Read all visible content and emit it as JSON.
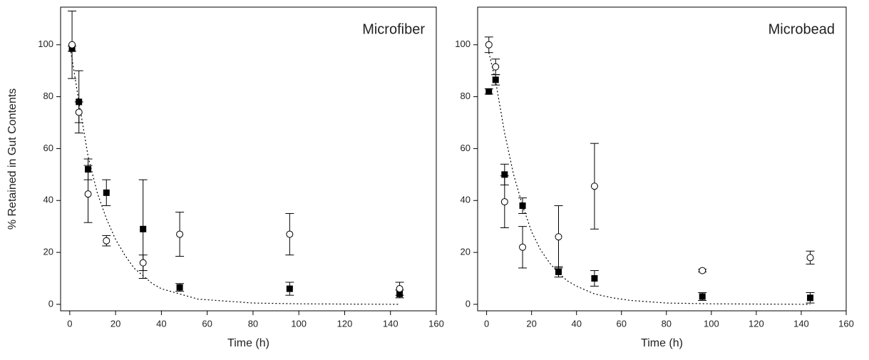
{
  "chart_data": [
    {
      "type": "scatter",
      "annotation": "Microfiber",
      "xlabel": "Time (h)",
      "ylabel": "% Retained in Gut Contents",
      "xlim": [
        -4,
        160
      ],
      "ylim": [
        -2.5,
        114.5
      ],
      "xticks": [
        0,
        20,
        40,
        60,
        80,
        100,
        120,
        140,
        160
      ],
      "yticks": [
        0,
        20,
        40,
        60,
        80,
        100
      ],
      "x": [
        1,
        4,
        8,
        16,
        32,
        48,
        96,
        144
      ],
      "series": [
        {
          "marker": "square",
          "color": "#000000",
          "values": [
            98.5,
            78,
            52,
            43,
            29,
            6.5,
            6,
            4
          ],
          "errors": [
            1,
            12,
            4,
            5,
            19,
            1.5,
            2.5,
            1.5
          ]
        },
        {
          "marker": "circle",
          "color": "#000000",
          "values": [
            100,
            74,
            42.5,
            24.5,
            16,
            27,
            27,
            6
          ],
          "errors": [
            13,
            4,
            11,
            2,
            3,
            8.5,
            8,
            2.5
          ]
        }
      ],
      "fit": {
        "x": [
          0,
          4,
          8,
          12,
          16,
          20,
          24,
          28,
          32,
          36,
          40,
          48,
          56,
          64,
          80,
          100,
          120,
          144
        ],
        "values": [
          100,
          78,
          57,
          43,
          33,
          25,
          19,
          14,
          11,
          8,
          6,
          4,
          2,
          1.5,
          0.5,
          0.2,
          0.1,
          0
        ]
      }
    },
    {
      "type": "scatter",
      "annotation": "Microbead",
      "xlabel": "Time (h)",
      "xlim": [
        -4,
        160
      ],
      "ylim": [
        -2.5,
        114.5
      ],
      "xticks": [
        0,
        20,
        40,
        60,
        80,
        100,
        120,
        140,
        160
      ],
      "yticks": [
        0,
        20,
        40,
        60,
        80,
        100
      ],
      "x": [
        1,
        4,
        8,
        16,
        32,
        48,
        96,
        144
      ],
      "series": [
        {
          "marker": "square",
          "color": "#000000",
          "values": [
            82,
            86.5,
            50,
            38,
            12.5,
            10,
            3,
            2.5
          ],
          "errors": [
            1,
            2,
            4,
            3,
            2,
            3,
            1.5,
            2
          ]
        },
        {
          "marker": "circle",
          "color": "#000000",
          "values": [
            100,
            91.5,
            39.5,
            22,
            26,
            45.5,
            13,
            18
          ],
          "errors": [
            3,
            3,
            10,
            8,
            12,
            16.5,
            0.5,
            2.5
          ]
        }
      ],
      "fit": {
        "x": [
          1,
          4,
          8,
          12,
          16,
          20,
          24,
          28,
          32,
          36,
          40,
          48,
          56,
          64,
          80,
          100,
          120,
          144
        ],
        "values": [
          97,
          86,
          66,
          50,
          38,
          28,
          21,
          16,
          12,
          9,
          7,
          4,
          2.5,
          1.5,
          0.5,
          0.2,
          0.1,
          0
        ]
      }
    }
  ]
}
